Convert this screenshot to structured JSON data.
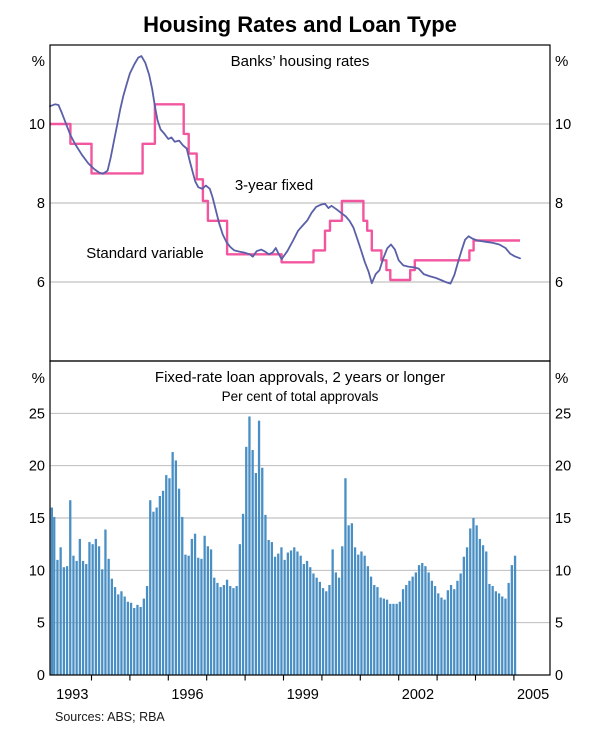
{
  "title": "Housing Rates and Loan Type",
  "units": {
    "percent": "%"
  },
  "sources": "Sources: ABS; RBA",
  "colors": {
    "fixed": "#5a60a8",
    "variable": "#f2569f",
    "bars": "#4a8fc4",
    "grid": "#b3b3b3",
    "frame": "#000000",
    "ticks": "#000000"
  },
  "x_axis": {
    "domain": [
      1992.92,
      2005.95
    ],
    "tick_years": [
      1994,
      1995,
      1996,
      1997,
      1998,
      1999,
      2000,
      2001,
      2002,
      2003,
      2004,
      2005
    ],
    "labels": [
      {
        "text": "1993",
        "t": 1993.5
      },
      {
        "text": "1996",
        "t": 1996.5
      },
      {
        "text": "1999",
        "t": 1999.5
      },
      {
        "text": "2002",
        "t": 2002.5
      },
      {
        "text": "2005",
        "t": 2005.5
      }
    ]
  },
  "chart_data": [
    {
      "type": "line",
      "title": "Banks’ housing rates",
      "unit": "%",
      "ylim": [
        4,
        12
      ],
      "gridlines": [
        6,
        8,
        10
      ],
      "ytick_labels": [
        10,
        8,
        6
      ],
      "series": [
        {
          "name": "3-year fixed",
          "style": "line",
          "color_key": "fixed",
          "points": [
            [
              1992.92,
              10.45
            ],
            [
              1993.05,
              10.5
            ],
            [
              1993.14,
              10.48
            ],
            [
              1993.22,
              10.3
            ],
            [
              1993.33,
              10.02
            ],
            [
              1993.45,
              9.72
            ],
            [
              1993.58,
              9.48
            ],
            [
              1993.75,
              9.22
            ],
            [
              1993.92,
              9.0
            ],
            [
              1994.08,
              8.85
            ],
            [
              1994.2,
              8.77
            ],
            [
              1994.3,
              8.74
            ],
            [
              1994.42,
              8.82
            ],
            [
              1994.5,
              9.15
            ],
            [
              1994.58,
              9.55
            ],
            [
              1994.67,
              9.98
            ],
            [
              1994.75,
              10.38
            ],
            [
              1994.83,
              10.72
            ],
            [
              1994.92,
              11.02
            ],
            [
              1995.0,
              11.28
            ],
            [
              1995.12,
              11.52
            ],
            [
              1995.22,
              11.68
            ],
            [
              1995.3,
              11.72
            ],
            [
              1995.4,
              11.55
            ],
            [
              1995.5,
              11.25
            ],
            [
              1995.58,
              10.88
            ],
            [
              1995.65,
              10.45
            ],
            [
              1995.72,
              10.1
            ],
            [
              1995.8,
              9.86
            ],
            [
              1995.9,
              9.75
            ],
            [
              1996.0,
              9.62
            ],
            [
              1996.08,
              9.66
            ],
            [
              1996.17,
              9.55
            ],
            [
              1996.28,
              9.58
            ],
            [
              1996.38,
              9.46
            ],
            [
              1996.48,
              9.38
            ],
            [
              1996.55,
              9.1
            ],
            [
              1996.63,
              8.8
            ],
            [
              1996.7,
              8.55
            ],
            [
              1996.78,
              8.4
            ],
            [
              1996.88,
              8.36
            ],
            [
              1996.98,
              8.44
            ],
            [
              1997.08,
              8.36
            ],
            [
              1997.15,
              8.15
            ],
            [
              1997.23,
              7.85
            ],
            [
              1997.32,
              7.5
            ],
            [
              1997.42,
              7.2
            ],
            [
              1997.52,
              7.0
            ],
            [
              1997.62,
              6.88
            ],
            [
              1997.72,
              6.8
            ],
            [
              1997.85,
              6.77
            ],
            [
              1998.0,
              6.74
            ],
            [
              1998.12,
              6.7
            ],
            [
              1998.2,
              6.64
            ],
            [
              1998.3,
              6.78
            ],
            [
              1998.42,
              6.82
            ],
            [
              1998.52,
              6.77
            ],
            [
              1998.62,
              6.7
            ],
            [
              1998.72,
              6.75
            ],
            [
              1998.8,
              6.86
            ],
            [
              1998.87,
              6.72
            ],
            [
              1998.95,
              6.58
            ],
            [
              1999.1,
              6.78
            ],
            [
              1999.25,
              7.05
            ],
            [
              1999.38,
              7.3
            ],
            [
              1999.5,
              7.43
            ],
            [
              1999.62,
              7.56
            ],
            [
              1999.73,
              7.75
            ],
            [
              1999.85,
              7.9
            ],
            [
              1999.98,
              7.96
            ],
            [
              2000.08,
              7.98
            ],
            [
              2000.17,
              7.87
            ],
            [
              2000.25,
              7.93
            ],
            [
              2000.38,
              7.84
            ],
            [
              2000.5,
              7.75
            ],
            [
              2000.62,
              7.66
            ],
            [
              2000.72,
              7.55
            ],
            [
              2000.82,
              7.38
            ],
            [
              2000.92,
              7.1
            ],
            [
              2001.02,
              6.8
            ],
            [
              2001.12,
              6.5
            ],
            [
              2001.22,
              6.25
            ],
            [
              2001.3,
              5.97
            ],
            [
              2001.4,
              6.2
            ],
            [
              2001.5,
              6.3
            ],
            [
              2001.6,
              6.6
            ],
            [
              2001.7,
              6.85
            ],
            [
              2001.8,
              6.95
            ],
            [
              2001.9,
              6.82
            ],
            [
              2002.0,
              6.55
            ],
            [
              2002.12,
              6.42
            ],
            [
              2002.25,
              6.39
            ],
            [
              2002.4,
              6.37
            ],
            [
              2002.52,
              6.34
            ],
            [
              2002.65,
              6.2
            ],
            [
              2002.8,
              6.15
            ],
            [
              2002.95,
              6.11
            ],
            [
              2003.1,
              6.05
            ],
            [
              2003.22,
              6.0
            ],
            [
              2003.35,
              5.96
            ],
            [
              2003.45,
              6.18
            ],
            [
              2003.55,
              6.52
            ],
            [
              2003.65,
              6.84
            ],
            [
              2003.73,
              7.07
            ],
            [
              2003.82,
              7.16
            ],
            [
              2003.92,
              7.1
            ],
            [
              2004.05,
              7.05
            ],
            [
              2004.25,
              7.02
            ],
            [
              2004.45,
              6.99
            ],
            [
              2004.62,
              6.95
            ],
            [
              2004.78,
              6.86
            ],
            [
              2004.9,
              6.72
            ],
            [
              2005.02,
              6.65
            ],
            [
              2005.16,
              6.6
            ]
          ]
        },
        {
          "name": "Standard variable",
          "style": "step",
          "color_key": "variable",
          "end_t": 2005.16,
          "points": [
            [
              1992.92,
              10.0
            ],
            [
              1993.45,
              9.5
            ],
            [
              1994.0,
              8.75
            ],
            [
              1995.33,
              9.5
            ],
            [
              1995.65,
              10.5
            ],
            [
              1996.4,
              9.75
            ],
            [
              1996.53,
              9.25
            ],
            [
              1996.74,
              8.6
            ],
            [
              1996.9,
              8.05
            ],
            [
              1997.03,
              7.55
            ],
            [
              1997.53,
              6.7
            ],
            [
              1998.95,
              6.5
            ],
            [
              1999.78,
              6.8
            ],
            [
              2000.08,
              7.3
            ],
            [
              2000.21,
              7.55
            ],
            [
              2000.52,
              8.05
            ],
            [
              2001.08,
              7.55
            ],
            [
              2001.18,
              7.3
            ],
            [
              2001.3,
              6.8
            ],
            [
              2001.55,
              6.55
            ],
            [
              2001.68,
              6.3
            ],
            [
              2001.78,
              6.05
            ],
            [
              2002.3,
              6.3
            ],
            [
              2002.42,
              6.55
            ],
            [
              2003.84,
              6.8
            ],
            [
              2003.95,
              7.05
            ]
          ]
        }
      ]
    },
    {
      "type": "bar",
      "title": "Fixed-rate loan approvals, 2 years or longer",
      "subtitle": "Per cent of total approvals",
      "unit": "%",
      "ylim": [
        0,
        30
      ],
      "gridlines": [
        5,
        10,
        15,
        20,
        25
      ],
      "ytick_labels": [
        25,
        20,
        15,
        10,
        5,
        0
      ],
      "bars": {
        "start_year": 1992,
        "start_month": 12,
        "values": [
          16.0,
          15.1,
          11.0,
          12.2,
          10.3,
          10.4,
          16.7,
          11.4,
          10.9,
          13.0,
          10.9,
          10.6,
          12.7,
          12.5,
          13.0,
          12.3,
          10.1,
          13.9,
          11.1,
          9.2,
          8.4,
          7.7,
          8.0,
          7.5,
          7.0,
          6.9,
          6.4,
          6.7,
          6.5,
          7.3,
          8.5,
          16.7,
          15.6,
          16.0,
          17.1,
          17.6,
          19.1,
          18.8,
          21.3,
          20.5,
          17.8,
          15.1,
          11.5,
          11.4,
          13.0,
          13.5,
          11.2,
          11.1,
          13.3,
          12.3,
          12.0,
          9.3,
          8.8,
          8.4,
          8.6,
          9.1,
          8.5,
          8.3,
          8.5,
          12.5,
          15.4,
          21.8,
          24.7,
          21.5,
          19.3,
          24.3,
          19.8,
          15.3,
          12.9,
          12.7,
          11.3,
          11.6,
          12.2,
          11.0,
          11.7,
          11.9,
          12.2,
          11.8,
          11.4,
          10.6,
          10.9,
          10.3,
          9.7,
          9.3,
          8.9,
          8.3,
          8.0,
          8.6,
          12.0,
          9.8,
          9.3,
          12.3,
          18.8,
          14.3,
          14.5,
          12.2,
          11.5,
          11.8,
          11.4,
          10.4,
          9.4,
          8.6,
          8.4,
          7.4,
          7.3,
          7.2,
          6.8,
          6.8,
          6.8,
          7.0,
          8.2,
          8.6,
          9.0,
          9.4,
          9.8,
          10.5,
          10.7,
          10.4,
          9.8,
          9.0,
          8.5,
          7.8,
          7.4,
          7.2,
          8.1,
          8.6,
          8.2,
          9.0,
          9.7,
          11.3,
          12.2,
          14.0,
          15.0,
          14.3,
          13.0,
          12.4,
          11.8,
          8.7,
          8.5,
          8.0,
          7.8,
          7.5,
          7.3,
          8.8,
          10.5,
          11.4
        ]
      }
    }
  ]
}
